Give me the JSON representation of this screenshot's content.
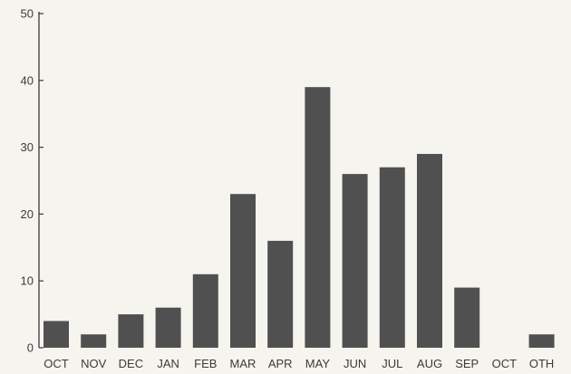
{
  "chart_data": {
    "type": "bar",
    "categories": [
      "OCT",
      "NOV",
      "DEC",
      "JAN",
      "FEB",
      "MAR",
      "APR",
      "MAY",
      "JUN",
      "JUL",
      "AUG",
      "SEP",
      "OCT",
      "OTH"
    ],
    "values": [
      4,
      2,
      5,
      6,
      11,
      23,
      16,
      39,
      26,
      27,
      29,
      9,
      0,
      2
    ],
    "yticks": [
      0,
      10,
      20,
      30,
      40,
      50
    ],
    "ylim": [
      0,
      50
    ],
    "grid": false,
    "title": "",
    "xlabel": "",
    "ylabel": "",
    "colors": {
      "bar": "#505050",
      "axis": "#3a3a3a",
      "background": "#f6f4ef"
    }
  }
}
